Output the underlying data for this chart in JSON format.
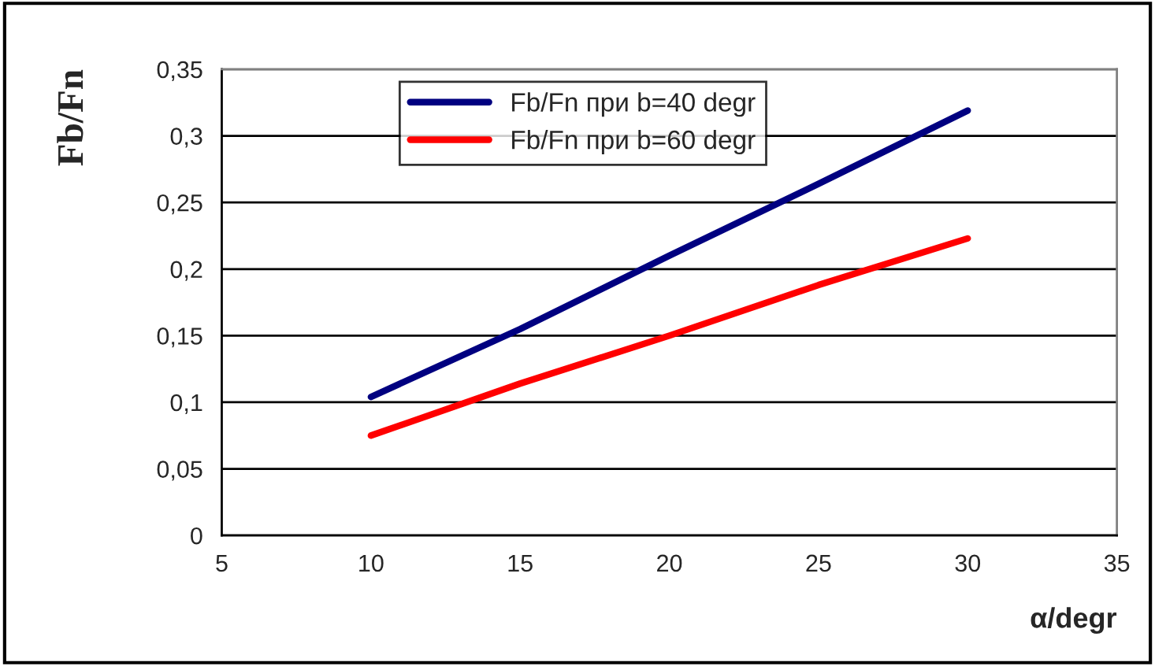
{
  "chart_data": {
    "type": "line",
    "xlabel": "α/degr",
    "ylabel": "Fb/Fn",
    "x": [
      10,
      15,
      20,
      25,
      30
    ],
    "series": [
      {
        "name": "Fb/Fn при b=40 degr",
        "color": "#000080",
        "values": [
          0.104,
          0.155,
          0.21,
          0.264,
          0.319
        ]
      },
      {
        "name": "Fb/Fn при b=60 degr",
        "color": "#ff0000",
        "values": [
          0.075,
          0.114,
          0.15,
          0.188,
          0.223
        ]
      }
    ],
    "xlim": [
      5,
      35
    ],
    "xticks": [
      5,
      10,
      15,
      20,
      25,
      30,
      35
    ],
    "ylim": [
      0,
      0.35
    ],
    "yticks": [
      {
        "value": 0,
        "label": "0"
      },
      {
        "value": 0.05,
        "label": "0,05"
      },
      {
        "value": 0.1,
        "label": "0,1"
      },
      {
        "value": 0.15,
        "label": "0,15"
      },
      {
        "value": 0.2,
        "label": "0,2"
      },
      {
        "value": 0.25,
        "label": "0,25"
      },
      {
        "value": 0.3,
        "label": "0,3"
      },
      {
        "value": 0.35,
        "label": "0,35"
      }
    ],
    "grid": "y",
    "legend": "top left",
    "marker": "none",
    "line_style": "solid"
  }
}
